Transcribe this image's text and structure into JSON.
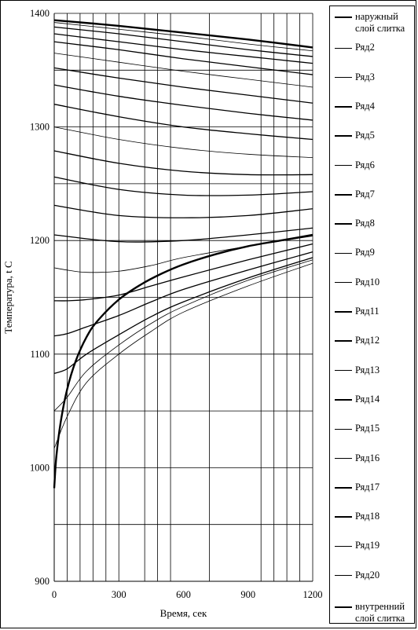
{
  "chart_data": {
    "type": "line",
    "xlabel": "Время, сек",
    "ylabel": "Температура, t C",
    "xlim": [
      0,
      1200
    ],
    "ylim": [
      900,
      1400
    ],
    "x_ticks": [
      "0",
      "300",
      "600",
      "900",
      "1200"
    ],
    "y_ticks": [
      "900",
      "1000",
      "1100",
      "1200",
      "1300",
      "1400"
    ],
    "x_tick_values": [
      0,
      300,
      600,
      900,
      1200
    ],
    "y_tick_values": [
      900,
      1000,
      1100,
      1200,
      1300,
      1400
    ],
    "h_grid": [
      950,
      1000,
      1050,
      1100,
      1150,
      1200,
      1250,
      1300,
      1350,
      1400
    ],
    "v_grid": [
      60,
      120,
      180,
      240,
      300,
      420,
      480,
      540,
      720,
      960,
      1020,
      1080,
      1140,
      1200
    ],
    "grid": true,
    "legend_position": "right",
    "series": [
      {
        "name": "наружный\nслой слитка",
        "bold": true,
        "x": [
          0,
          300,
          600,
          900,
          1200
        ],
        "values": [
          1394,
          1389,
          1383,
          1377,
          1370
        ]
      },
      {
        "name": "Ряд2",
        "bold": false,
        "x": [
          0,
          300,
          600,
          900,
          1200
        ],
        "values": [
          1392,
          1386,
          1380,
          1373,
          1367
        ]
      },
      {
        "name": "Ряд3",
        "bold": true,
        "x": [
          0,
          300,
          600,
          900,
          1200
        ],
        "values": [
          1388,
          1382,
          1375,
          1368,
          1362
        ]
      },
      {
        "name": "Ряд4",
        "bold": true,
        "x": [
          0,
          300,
          600,
          900,
          1200
        ],
        "values": [
          1382,
          1375,
          1368,
          1362,
          1356
        ]
      },
      {
        "name": "Ряд5",
        "bold": true,
        "x": [
          0,
          300,
          600,
          900,
          1200
        ],
        "values": [
          1375,
          1368,
          1360,
          1353,
          1346
        ]
      },
      {
        "name": "Ряд6",
        "bold": false,
        "x": [
          0,
          300,
          600,
          900,
          1200
        ],
        "values": [
          1365,
          1357,
          1349,
          1342,
          1335
        ]
      },
      {
        "name": "Ряд7",
        "bold": true,
        "x": [
          0,
          300,
          600,
          900,
          1200
        ],
        "values": [
          1352,
          1343,
          1335,
          1328,
          1321
        ]
      },
      {
        "name": "Ряд8",
        "bold": true,
        "x": [
          0,
          300,
          600,
          900,
          1200
        ],
        "values": [
          1337,
          1327,
          1319,
          1312,
          1306
        ]
      },
      {
        "name": "Ряд9",
        "bold": true,
        "x": [
          0,
          300,
          600,
          900,
          1200
        ],
        "values": [
          1320,
          1309,
          1300,
          1294,
          1289
        ]
      },
      {
        "name": "Ряд10",
        "bold": false,
        "x": [
          0,
          300,
          600,
          900,
          1200
        ],
        "values": [
          1300,
          1289,
          1281,
          1276,
          1273
        ]
      },
      {
        "name": "Ряд11",
        "bold": true,
        "x": [
          0,
          300,
          600,
          900,
          1200
        ],
        "values": [
          1279,
          1268,
          1261,
          1258,
          1258
        ]
      },
      {
        "name": "Ряд12",
        "bold": true,
        "x": [
          0,
          300,
          600,
          900,
          1200
        ],
        "values": [
          1256,
          1245,
          1240,
          1240,
          1243
        ]
      },
      {
        "name": "Ряд13",
        "bold": true,
        "x": [
          0,
          300,
          600,
          900,
          1200
        ],
        "values": [
          1231,
          1222,
          1220,
          1222,
          1228
        ]
      },
      {
        "name": "Ряд14",
        "bold": true,
        "x": [
          0,
          300,
          600,
          900,
          1200
        ],
        "values": [
          1205,
          1199,
          1200,
          1205,
          1211
        ]
      },
      {
        "name": "Ряд15",
        "bold": false,
        "x": [
          0,
          60,
          150,
          300,
          450,
          600,
          900,
          1200
        ],
        "values": [
          1176,
          1174,
          1172,
          1173,
          1178,
          1185,
          1195,
          1204
        ]
      },
      {
        "name": "Ряд16",
        "bold": true,
        "x": [
          0,
          60,
          150,
          300,
          450,
          600,
          900,
          1200
        ],
        "values": [
          1147,
          1147,
          1148,
          1152,
          1160,
          1168,
          1183,
          1197
        ]
      },
      {
        "name": "Ряд17",
        "bold": true,
        "x": [
          0,
          60,
          150,
          300,
          450,
          600,
          900,
          1200
        ],
        "values": [
          1116,
          1118,
          1124,
          1134,
          1146,
          1157,
          1174,
          1190
        ]
      },
      {
        "name": "Ряд18",
        "bold": true,
        "x": [
          0,
          60,
          150,
          300,
          450,
          600,
          900,
          1200
        ],
        "values": [
          1083,
          1087,
          1100,
          1117,
          1133,
          1146,
          1167,
          1185
        ]
      },
      {
        "name": "Ряд19",
        "bold": false,
        "x": [
          0,
          60,
          150,
          300,
          450,
          600,
          900,
          1200
        ],
        "values": [
          1050,
          1062,
          1085,
          1108,
          1127,
          1142,
          1165,
          1183
        ]
      },
      {
        "name": "Ряд20",
        "bold": false,
        "x": [
          0,
          60,
          150,
          300,
          450,
          600,
          900,
          1200
        ],
        "values": [
          1017,
          1045,
          1075,
          1100,
          1120,
          1137,
          1160,
          1180
        ]
      },
      {
        "name": "внутренний\nслой слитка",
        "bold": true,
        "x": [
          0,
          10,
          30,
          60,
          100,
          150,
          200,
          300,
          400,
          500,
          600,
          750,
          900,
          1050,
          1200
        ],
        "values": [
          982,
          1010,
          1040,
          1069,
          1094,
          1115,
          1129,
          1148,
          1161,
          1171,
          1179,
          1188,
          1195,
          1200,
          1205
        ]
      }
    ]
  }
}
